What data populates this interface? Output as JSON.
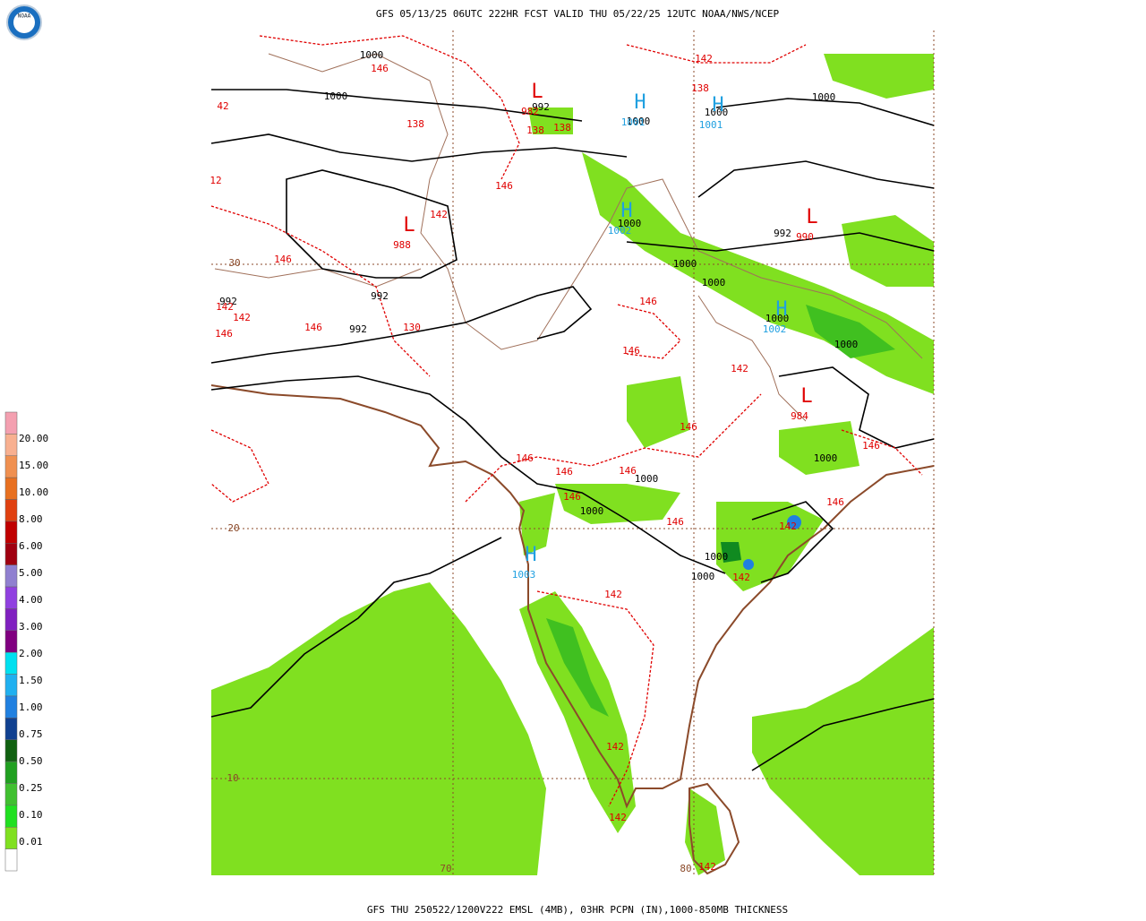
{
  "header": {
    "title": "GFS 05/13/25 06UTC 222HR FCST VALID THU 05/22/25 12UTC NOAA/NWS/NCEP",
    "logo": "NOAA"
  },
  "legend": {
    "colors": [
      "#f4a0b0",
      "#f8b090",
      "#f09050",
      "#e87020",
      "#e04010",
      "#c00000",
      "#a00010",
      "#9080d0",
      "#9040e0",
      "#8020c0",
      "#800080",
      "#00e0f0",
      "#20b0f0",
      "#2080e0",
      "#104090",
      "#106010",
      "#20a020",
      "#40c030",
      "#20e020",
      "#80e020",
      "#ffffff"
    ],
    "labels": [
      "20.00",
      "15.00",
      "10.00",
      "8.00",
      "6.00",
      "5.00",
      "4.00",
      "3.00",
      "2.00",
      "1.50",
      "1.00",
      "0.75",
      "0.50",
      "0.25",
      "0.10",
      "0.01"
    ]
  },
  "map": {
    "grid_labels": [
      "30",
      "20",
      "10",
      "70",
      "80"
    ],
    "pressure_labels": [
      "1000",
      "1000",
      "992",
      "1000",
      "1000",
      "1000",
      "1000",
      "992",
      "1000",
      "1000",
      "992",
      "992",
      "992",
      "1000",
      "1000",
      "1000",
      "1000",
      "1000",
      "1000",
      "1000"
    ],
    "thickness_labels": [
      "146",
      "142",
      "42",
      "138",
      "138",
      "138",
      "138",
      "146",
      "142",
      "12",
      "146",
      "142",
      "142",
      "146",
      "146",
      "130",
      "146",
      "146",
      "142",
      "146",
      "146",
      "146",
      "146",
      "146",
      "146",
      "146",
      "146",
      "142",
      "142",
      "142",
      "142",
      "142",
      "142"
    ],
    "centers": [
      {
        "symbol": "L",
        "value": "988"
      },
      {
        "symbol": "L",
        "value": "982"
      },
      {
        "symbol": "L",
        "value": "990"
      },
      {
        "symbol": "L",
        "value": "984"
      },
      {
        "symbol": "H",
        "value": "1001"
      },
      {
        "symbol": "H",
        "value": "1001"
      },
      {
        "symbol": "H",
        "value": "1002"
      },
      {
        "symbol": "H",
        "value": "1002"
      },
      {
        "symbol": "H",
        "value": "1003"
      }
    ]
  },
  "footer": {
    "caption": "GFS THU 250522/1200V222 EMSL (4MB), 03HR PCPN (IN),1000-850MB THICKNESS"
  }
}
